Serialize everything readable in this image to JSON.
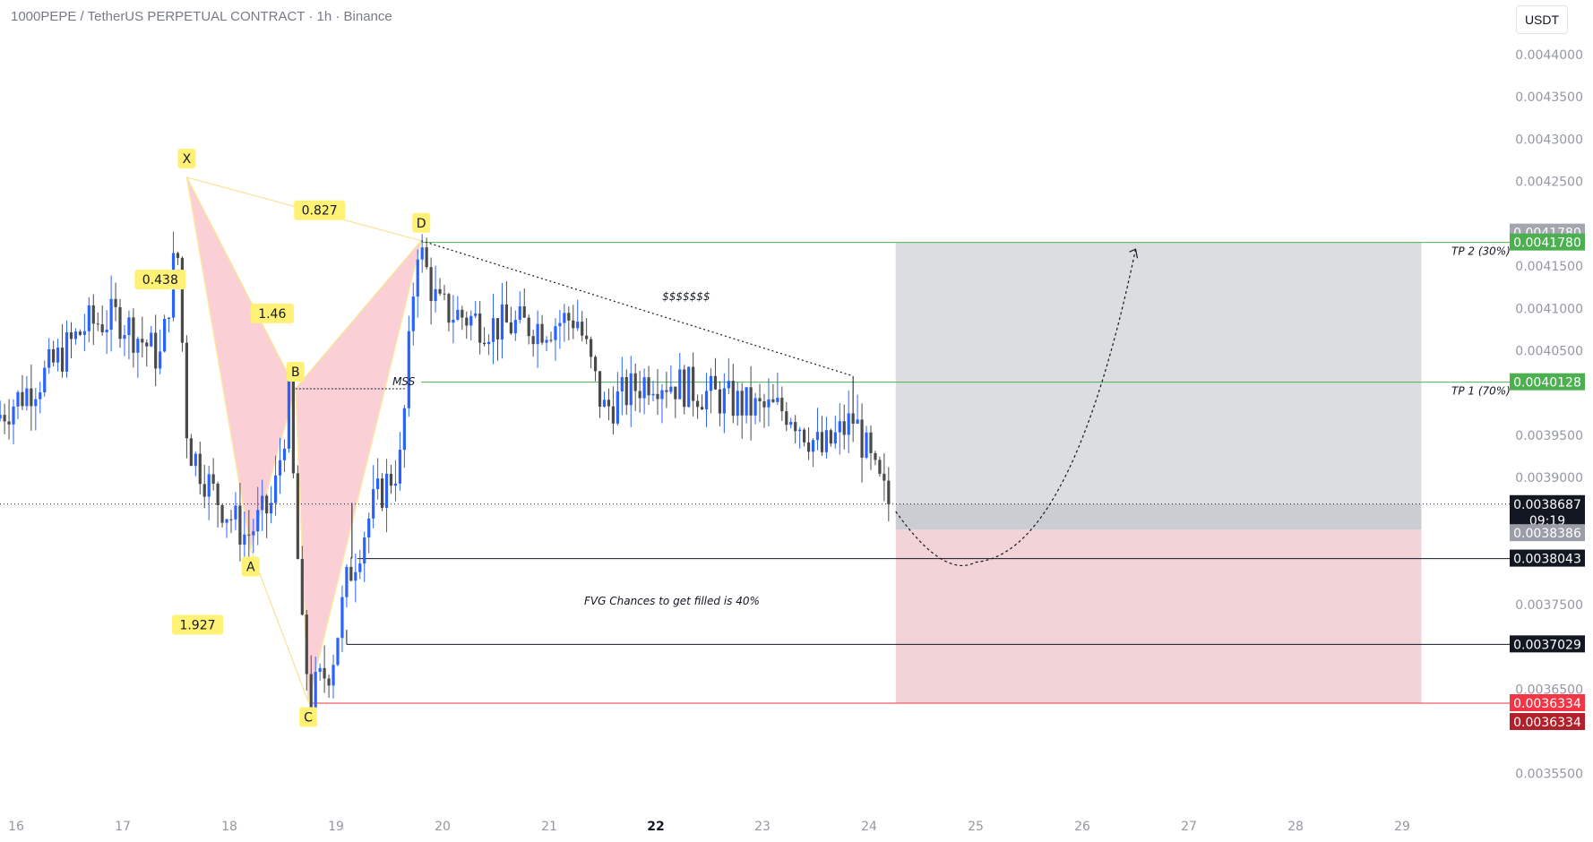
{
  "header": {
    "symbol_title": "1000PEPE / TetherUS PERPETUAL CONTRACT · 1h · Binance",
    "currency_button": "USDT"
  },
  "chart_data": {
    "type": "candlestick",
    "title": "1000PEPE / TetherUS PERPETUAL CONTRACT · 1h · Binance",
    "ylim": [
      0.00352,
      0.00446
    ],
    "xlim": [
      15.85,
      29.25
    ],
    "grid": false,
    "y_ticks": [
      "0.0044000",
      "0.0043500",
      "0.0043000",
      "0.0042500",
      "0.0041500",
      "0.0041000",
      "0.0040500",
      "0.0039500",
      "0.0039000",
      "0.0037500",
      "0.0036500",
      "0.0035500"
    ],
    "x_ticks": [
      {
        "label": "16",
        "x": 16,
        "bold": false
      },
      {
        "label": "17",
        "x": 17,
        "bold": false
      },
      {
        "label": "18",
        "x": 18,
        "bold": false
      },
      {
        "label": "19",
        "x": 19,
        "bold": false
      },
      {
        "label": "20",
        "x": 20,
        "bold": false
      },
      {
        "label": "21",
        "x": 21,
        "bold": false
      },
      {
        "label": "22",
        "x": 22,
        "bold": true
      },
      {
        "label": "23",
        "x": 23,
        "bold": false
      },
      {
        "label": "24",
        "x": 24,
        "bold": false
      },
      {
        "label": "25",
        "x": 25,
        "bold": false
      },
      {
        "label": "26",
        "x": 26,
        "bold": false
      },
      {
        "label": "27",
        "x": 27,
        "bold": false
      },
      {
        "label": "28",
        "x": 28,
        "bold": false
      },
      {
        "label": "29",
        "x": 29,
        "bold": false
      }
    ],
    "candles_anchor_path": [
      [
        15.85,
        0.00397
      ],
      [
        16.3,
        0.00402
      ],
      [
        16.7,
        0.00408
      ],
      [
        17.0,
        0.00409
      ],
      [
        17.4,
        0.00404
      ],
      [
        17.55,
        0.00418
      ],
      [
        17.65,
        0.00394
      ],
      [
        17.9,
        0.00388
      ],
      [
        18.2,
        0.00383
      ],
      [
        18.45,
        0.00387
      ],
      [
        18.6,
        0.00399
      ],
      [
        18.72,
        0.00372
      ],
      [
        18.8,
        0.00364
      ],
      [
        19.0,
        0.00368
      ],
      [
        19.15,
        0.00378
      ],
      [
        19.4,
        0.00387
      ],
      [
        19.65,
        0.00392
      ],
      [
        19.8,
        0.00418
      ],
      [
        20.0,
        0.0041
      ],
      [
        20.5,
        0.00408
      ],
      [
        21.0,
        0.00408
      ],
      [
        21.3,
        0.00409
      ],
      [
        21.55,
        0.00398
      ],
      [
        22.0,
        0.00402
      ],
      [
        22.5,
        0.004
      ],
      [
        23.0,
        0.00398
      ],
      [
        23.3,
        0.00398
      ],
      [
        23.6,
        0.00393
      ],
      [
        23.9,
        0.00397
      ],
      [
        24.1,
        0.0039
      ],
      [
        24.22,
        0.00387
      ]
    ],
    "pattern": {
      "points": [
        {
          "name": "X",
          "x": 17.6,
          "y": 0.004255
        },
        {
          "name": "A",
          "x": 18.2,
          "y": 0.003815
        },
        {
          "name": "B",
          "x": 18.62,
          "y": 0.004005
        },
        {
          "name": "C",
          "x": 18.74,
          "y": 0.003635
        },
        {
          "name": "D",
          "x": 19.8,
          "y": 0.00418
        }
      ],
      "ratios": [
        {
          "label": "0.827",
          "x": 18.72,
          "y": 0.004215
        },
        {
          "label": "0.438",
          "x": 18.15,
          "y": 0.004133
        },
        {
          "label": "1.46",
          "x": 19.2,
          "y": 0.004093
        },
        {
          "label": "1.927",
          "x": 18.5,
          "y": 0.003725
        }
      ]
    },
    "position": {
      "x_start": 24.25,
      "x_end": 29.18,
      "entry": 0.0038386,
      "tp2": 0.004178,
      "stop": 0.0036334
    },
    "levels": [
      {
        "label": "TP 2 (30%)",
        "value": 0.004178,
        "color": "#4caf50"
      },
      {
        "label": "TP 1 (70%)",
        "value": 0.0040128,
        "color": "#4caf50"
      },
      {
        "label": "",
        "value": 0.0038043,
        "color": "#131722"
      },
      {
        "label": "",
        "value": 0.0037029,
        "color": "#131722"
      },
      {
        "label": "",
        "value": 0.0036334,
        "color": "#f23645"
      }
    ],
    "price_tags": [
      {
        "text": "0.0041780",
        "value": 0.004178,
        "bg": "#a3a6af",
        "dy": -11
      },
      {
        "text": "0.0041780",
        "value": 0.004178,
        "bg": "#4caf50",
        "dy": 0
      },
      {
        "text": "0.0040128",
        "value": 0.0040128,
        "bg": "#4caf50",
        "dy": 0
      },
      {
        "text": "0.0038687",
        "value": 0.0038687,
        "bg": "#131722",
        "dy": 0
      },
      {
        "text": "0.0038386",
        "value": 0.0038386,
        "bg": "#9b9ea8",
        "dy": 0
      },
      {
        "text": "0.0038043",
        "value": 0.0038043,
        "bg": "#131722",
        "dy": 0
      },
      {
        "text": "0.0037029",
        "value": 0.0037029,
        "bg": "#131722",
        "dy": 0
      },
      {
        "text": "0.0036334",
        "value": 0.0036334,
        "bg": "#f23645",
        "dy": 0
      },
      {
        "text": "0.0036334",
        "value": 0.0036334,
        "bg": "#b2202b",
        "dy": 0
      }
    ],
    "current_price": 0.0038687,
    "countdown": "09:19",
    "annotations": {
      "mss": "MSS",
      "liquidity": "$$$$$$$",
      "fvg_note": "FVG Chances to get filled is 40%",
      "tp2_label": "TP 2 (30%)",
      "tp1_label": "TP 1 (70%)"
    },
    "colors": {
      "up": "#2962ff",
      "down": "#4a4a4a",
      "harmonic_fill": "#f8bbc3",
      "harmonic_edge": "#fbe9a8",
      "point_box": "#fff176",
      "tp_zone": "#dcdde0",
      "sl_zone": "#f2d4d8"
    }
  }
}
